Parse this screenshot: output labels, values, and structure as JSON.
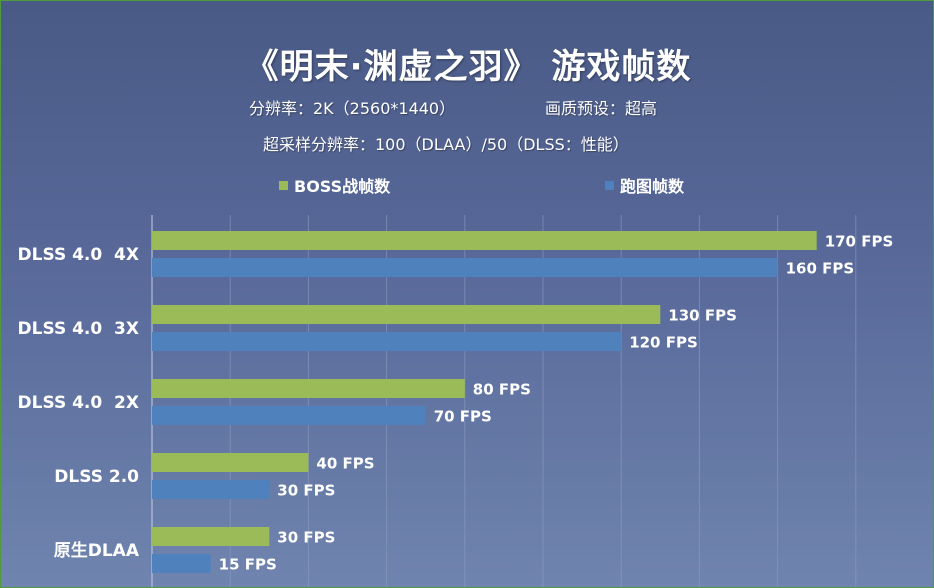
{
  "header": {
    "title": "《明末·渊虚之羽》 游戏帧数",
    "subtitle_resolution": "分辨率：2K（2560*1440）",
    "subtitle_quality": "画质预设：超高",
    "subtitle_super_sampling": "超采样分辨率：100（DLAA）/50（DLSS：性能）"
  },
  "colors": {
    "series_1": "#9bbb59",
    "series_2": "#4f81bd",
    "background_top": "#4a5a86",
    "background_bottom": "#6f84ae",
    "gridline": "#8e9cc0",
    "text": "#ffffff"
  },
  "chart_data": {
    "type": "bar",
    "orientation": "horizontal",
    "categories": [
      "DLSS 4.0  4X",
      "DLSS 4.0  3X",
      "DLSS 4.0  2X",
      "DLSS 2.0",
      "原生DLAA"
    ],
    "series": [
      {
        "name": "BOSS战帧数",
        "values": [
          170,
          130,
          80,
          40,
          30
        ],
        "labels": [
          "170 FPS",
          "130 FPS",
          "80 FPS",
          "40 FPS",
          "30 FPS"
        ]
      },
      {
        "name": "跑图帧数",
        "values": [
          160,
          120,
          70,
          30,
          15
        ],
        "labels": [
          "160 FPS",
          "120 FPS",
          "70 FPS",
          "30 FPS",
          "15 FPS"
        ]
      }
    ],
    "xlim": [
      0,
      200
    ],
    "grid": true,
    "legend_position": "top"
  }
}
